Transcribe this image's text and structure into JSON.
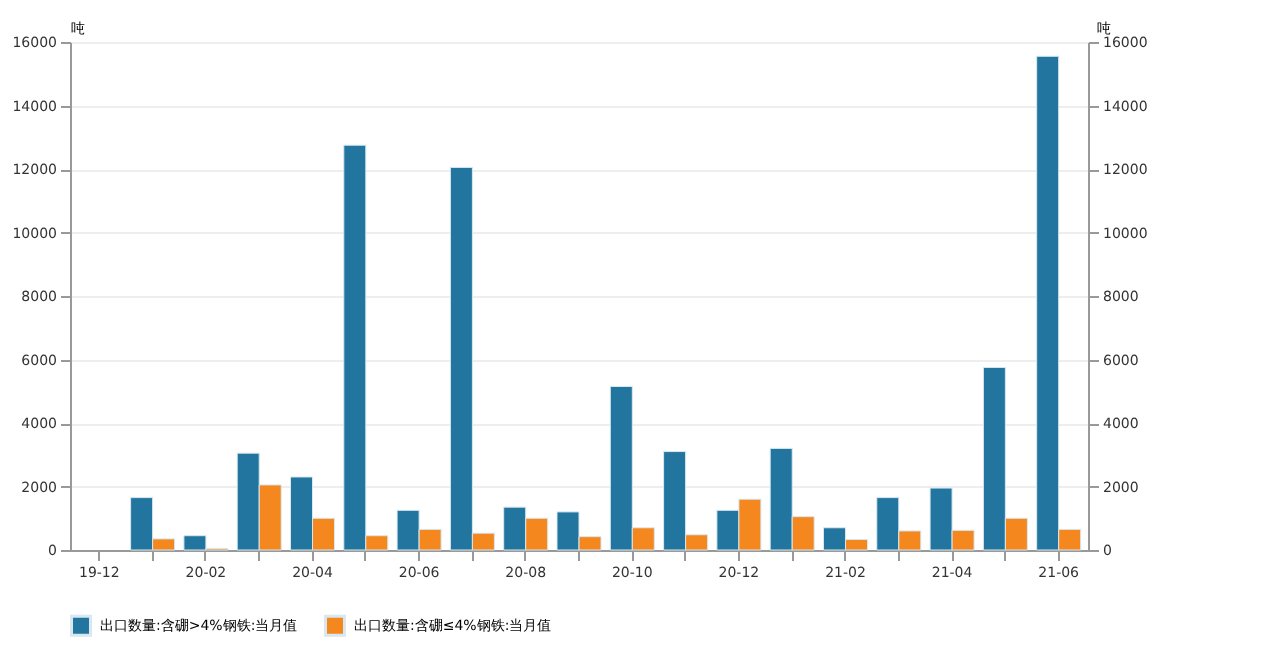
{
  "chart_data": {
    "type": "bar",
    "ylabel": "吨",
    "y2label": "吨",
    "categories": [
      "19-12",
      null,
      "20-02",
      null,
      "20-04",
      null,
      "20-06",
      null,
      "20-08",
      null,
      "20-10",
      null,
      "20-12",
      null,
      "21-02",
      null,
      "21-04",
      null,
      "21-06"
    ],
    "series": [
      {
        "name": "出口数量:含硼>4%钢铁:当月值",
        "color": "#21759f",
        "values": [
          null,
          1650,
          450,
          3050,
          2300,
          12750,
          1250,
          12050,
          1350,
          1200,
          5150,
          3100,
          1250,
          3200,
          700,
          1650,
          1950,
          5750,
          15550
        ]
      },
      {
        "name": "出口数量:含硼≤4%钢铁:当月值",
        "color": "#f5871f",
        "axis": "y2",
        "values": [
          null,
          350,
          50,
          2050,
          1000,
          450,
          650,
          530,
          1000,
          420,
          700,
          480,
          1600,
          1050,
          330,
          600,
          620,
          1000,
          650
        ]
      }
    ],
    "ylim": [
      0,
      16000
    ],
    "yticks": [
      0,
      2000,
      4000,
      6000,
      8000,
      10000,
      12000,
      14000,
      16000
    ],
    "y2lim": [
      0,
      16000
    ],
    "y2ticks": [
      0,
      2000,
      4000,
      6000,
      8000,
      10000,
      12000,
      14000,
      16000
    ],
    "grid": "y",
    "legend": "bottom"
  }
}
